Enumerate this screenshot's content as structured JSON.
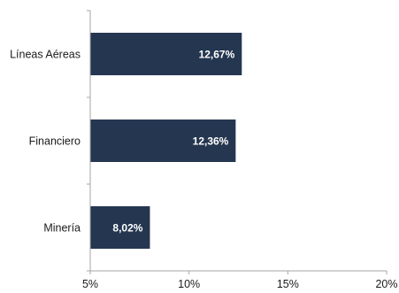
{
  "chart_data": {
    "type": "bar",
    "orientation": "horizontal",
    "categories": [
      "Líneas Aéreas",
      "Financiero",
      "Minería"
    ],
    "values": [
      12.67,
      12.36,
      8.02
    ],
    "data_labels": [
      "12,67%",
      "12,36%",
      "8,02%"
    ],
    "xlim": [
      5,
      20
    ],
    "xticks": [
      5,
      10,
      15,
      20
    ],
    "xtick_labels": [
      "5%",
      "10%",
      "15%",
      "20%"
    ],
    "grid": false,
    "bar_color": "#253650",
    "label_color": "#ffffff",
    "axis_color": "#a6a6a6"
  }
}
